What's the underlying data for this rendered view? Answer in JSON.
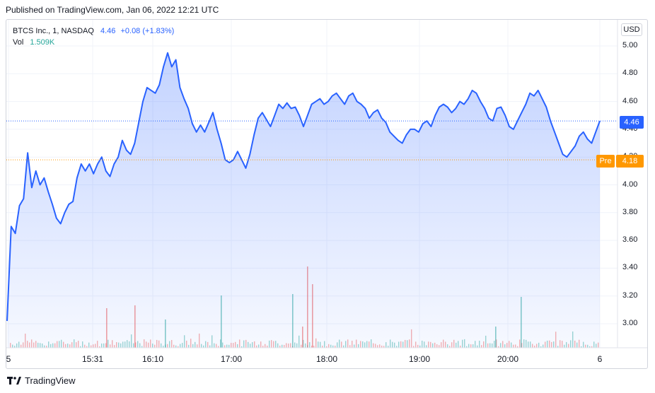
{
  "header": {
    "published": "Published on TradingView.com, Jan 06, 2022 12:21 UTC"
  },
  "legend": {
    "symbol": "BTCS Inc., 1, NASDAQ",
    "last": "4.46",
    "change": "+0.08 (+1.83%)",
    "vol_label": "Vol",
    "vol_value": "1.509K"
  },
  "currency_button": "USD",
  "price_tag": "4.46",
  "premarket": {
    "label": "Pre",
    "value": "4.18"
  },
  "logo_text": "TradingView",
  "colors": {
    "line": "#2962ff",
    "up_volume": "#26a69a",
    "down_volume": "#ef5350",
    "premarket": "#ff9800"
  },
  "chart_data": {
    "type": "area",
    "y_axis_ticks": [
      "5.00",
      "4.80",
      "4.60",
      "4.40",
      "4.20",
      "4.00",
      "3.80",
      "3.60",
      "3.40",
      "3.20",
      "3.00"
    ],
    "x_axis_ticks": [
      "5",
      "15:31",
      "16:10",
      "17:00",
      "18:00",
      "19:00",
      "20:00",
      "6"
    ],
    "ylim": [
      2.85,
      5.1
    ],
    "last_price": 4.46,
    "premarket_price": 4.18,
    "series": [
      {
        "values": [
          3.02,
          3.7,
          3.65,
          3.85,
          3.9,
          4.23,
          3.98,
          4.1,
          4.0,
          4.05,
          3.95,
          3.86,
          3.76,
          3.72,
          3.8,
          3.86,
          3.88,
          4.05,
          4.15,
          4.1,
          4.15,
          4.08,
          4.15,
          4.2,
          4.1,
          4.06,
          4.15,
          4.2,
          4.32,
          4.25,
          4.22,
          4.3,
          4.45,
          4.6,
          4.7,
          4.68,
          4.66,
          4.72,
          4.85,
          4.95,
          4.85,
          4.9,
          4.7,
          4.62,
          4.55,
          4.44,
          4.38,
          4.43,
          4.38,
          4.45,
          4.52,
          4.4,
          4.3,
          4.18,
          4.16,
          4.18,
          4.24,
          4.18,
          4.12,
          4.22,
          4.36,
          4.48,
          4.52,
          4.47,
          4.42,
          4.5,
          4.58,
          4.55,
          4.59,
          4.55,
          4.56,
          4.5,
          4.42,
          4.5,
          4.58,
          4.6,
          4.62,
          4.58,
          4.6,
          4.64,
          4.66,
          4.62,
          4.58,
          4.64,
          4.66,
          4.6,
          4.58,
          4.55,
          4.48,
          4.52,
          4.54,
          4.48,
          4.45,
          4.38,
          4.35,
          4.32,
          4.3,
          4.36,
          4.4,
          4.4,
          4.38,
          4.44,
          4.46,
          4.42,
          4.5,
          4.56,
          4.58,
          4.56,
          4.52,
          4.55,
          4.6,
          4.58,
          4.62,
          4.68,
          4.66,
          4.6,
          4.55,
          4.48,
          4.46,
          4.55,
          4.56,
          4.5,
          4.42,
          4.4,
          4.46,
          4.52,
          4.58,
          4.66,
          4.64,
          4.68,
          4.62,
          4.56,
          4.46,
          4.38,
          4.3,
          4.22,
          4.2,
          4.24,
          4.28,
          4.35,
          4.38,
          4.33,
          4.3,
          4.38,
          4.46
        ]
      }
    ]
  }
}
